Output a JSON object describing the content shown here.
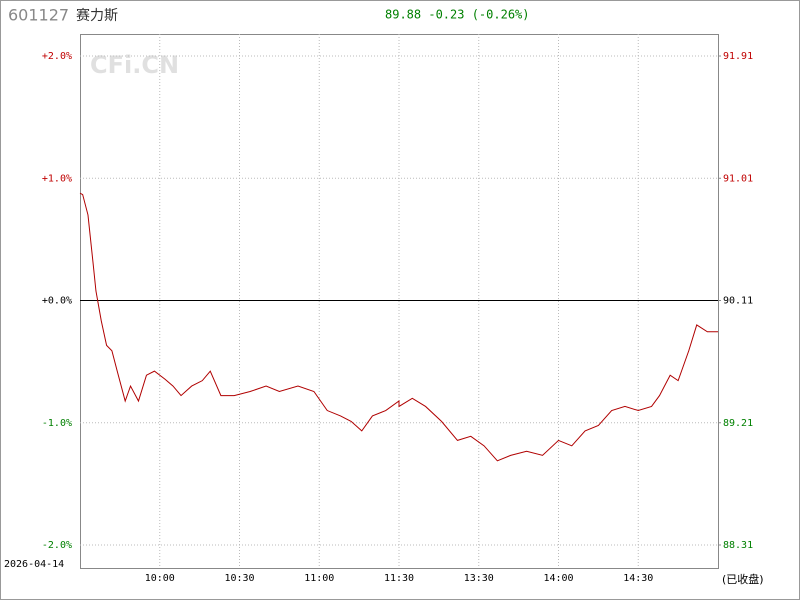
{
  "chart_data": {
    "type": "line",
    "code": "601127",
    "name": "赛力斯",
    "quote": "89.88 -0.23 (-0.26%)",
    "watermark": "CFi.CN",
    "date": "2026-04-14",
    "status": "(已收盘)",
    "sessions": [
      [
        "09:30",
        "11:30"
      ],
      [
        "13:00",
        "15:00"
      ]
    ],
    "x": [
      "09:30",
      "09:31",
      "09:33",
      "09:35",
      "09:36",
      "09:38",
      "09:40",
      "09:42",
      "09:44",
      "09:47",
      "09:49",
      "09:52",
      "09:55",
      "09:58",
      "10:02",
      "10:05",
      "10:08",
      "10:12",
      "10:16",
      "10:19",
      "10:23",
      "10:28",
      "10:34",
      "10:40",
      "10:45",
      "10:52",
      "10:58",
      "11:03",
      "11:08",
      "11:12",
      "11:16",
      "11:20",
      "11:25",
      "11:30",
      "13:00",
      "13:05",
      "13:10",
      "13:16",
      "13:22",
      "13:27",
      "13:32",
      "13:37",
      "13:42",
      "13:48",
      "13:54",
      "14:00",
      "14:05",
      "14:10",
      "14:15",
      "14:20",
      "14:25",
      "14:30",
      "14:35",
      "14:38",
      "14:42",
      "14:45",
      "14:49",
      "14:52",
      "14:56",
      "15:00"
    ],
    "series": [
      {
        "name": "price",
        "color": "#b00000",
        "axis": "y2",
        "values": [
          90.9,
          90.89,
          90.74,
          90.37,
          90.18,
          89.96,
          89.78,
          89.74,
          89.59,
          89.37,
          89.48,
          89.37,
          89.56,
          89.59,
          89.53,
          89.48,
          89.41,
          89.48,
          89.52,
          89.59,
          89.41,
          89.41,
          89.44,
          89.48,
          89.44,
          89.48,
          89.44,
          89.3,
          89.26,
          89.22,
          89.15,
          89.26,
          89.3,
          89.37,
          89.33,
          89.39,
          89.33,
          89.22,
          89.08,
          89.11,
          89.04,
          88.93,
          88.97,
          89.0,
          88.97,
          89.08,
          89.04,
          89.15,
          89.19,
          89.3,
          89.33,
          89.3,
          89.33,
          89.41,
          89.56,
          89.52,
          89.74,
          89.93,
          89.88,
          89.88
        ]
      }
    ],
    "xticks": [
      "10:00",
      "10:30",
      "11:00",
      "11:30",
      "13:30",
      "14:00",
      "14:30"
    ],
    "ylim": [
      -2,
      2
    ],
    "yticks": [
      {
        "value": 2,
        "label": "+2.0%"
      },
      {
        "value": 1,
        "label": "+1.0%"
      },
      {
        "value": 0,
        "label": "+0.0%"
      },
      {
        "value": -1,
        "label": "-1.0%"
      },
      {
        "value": -2,
        "label": "-2.0%"
      }
    ],
    "y2lim": [
      88.31,
      91.91
    ],
    "y2ticks": [
      91.91,
      91.01,
      90.11,
      89.21,
      88.31
    ],
    "up_color": "#c00000",
    "down_color": "#008000",
    "flat_color": "#000000",
    "grid": true
  }
}
